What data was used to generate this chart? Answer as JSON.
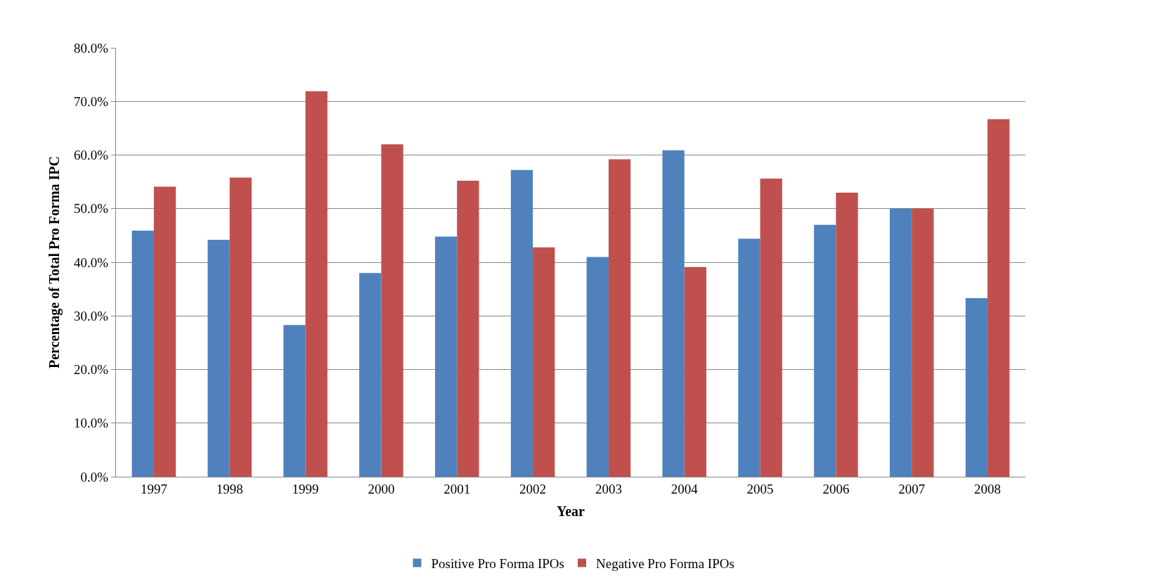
{
  "chart_data": {
    "type": "bar",
    "xlabel": "Year",
    "ylabel": "Percentage of Total Pro Forma IPC",
    "categories": [
      "1997",
      "1998",
      "1999",
      "2000",
      "2001",
      "2002",
      "2003",
      "2004",
      "2005",
      "2006",
      "2007",
      "2008"
    ],
    "series": [
      {
        "name": "Positive Pro Forma IPOs",
        "color": "#4f81bd",
        "values": [
          45.9,
          44.2,
          28.3,
          38.0,
          44.8,
          57.2,
          41.0,
          60.9,
          44.4,
          47.0,
          50.0,
          33.3
        ]
      },
      {
        "name": "Negative Pro Forma IPOs",
        "color": "#c0504d",
        "values": [
          54.1,
          55.8,
          71.9,
          62.0,
          55.2,
          42.8,
          59.2,
          39.1,
          55.6,
          53.0,
          50.0,
          66.7
        ]
      }
    ],
    "ylim": [
      0,
      80
    ],
    "yticks": [
      {
        "value": 0,
        "label": "0.0%"
      },
      {
        "value": 10,
        "label": "10.0%"
      },
      {
        "value": 20,
        "label": "20.0%"
      },
      {
        "value": 30,
        "label": "30.0%"
      },
      {
        "value": 40,
        "label": "40.0%"
      },
      {
        "value": 50,
        "label": "50.0%"
      },
      {
        "value": 60,
        "label": "60.0%"
      },
      {
        "value": 70,
        "label": "70.0%"
      },
      {
        "value": 80,
        "label": "80.0%"
      }
    ],
    "grid": "y",
    "legend": "bottom"
  }
}
